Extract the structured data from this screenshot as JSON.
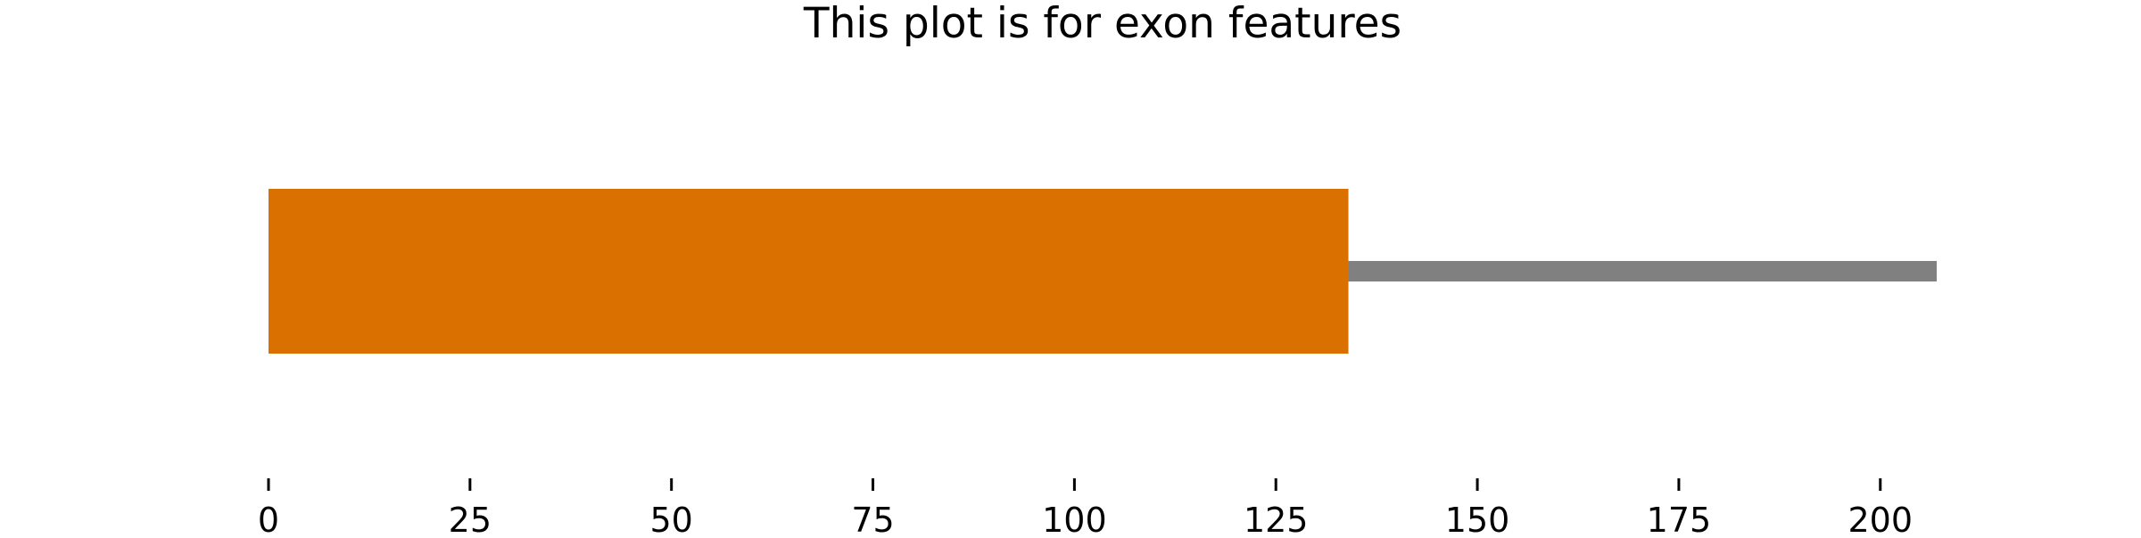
{
  "chart_data": {
    "type": "bar",
    "title": "This plot is for exon features",
    "xlabel": "",
    "ylabel": "",
    "xlim": [
      0,
      207
    ],
    "ticks": [
      0,
      25,
      50,
      75,
      100,
      125,
      150,
      175,
      200
    ],
    "tick_labels": [
      "0",
      "25",
      "50",
      "75",
      "100",
      "125",
      "150",
      "175",
      "200"
    ],
    "features": [
      {
        "start": 0,
        "end": 134,
        "color": "#d97000",
        "kind": "exon-block"
      }
    ],
    "baseline": {
      "start": 134,
      "end": 207,
      "color": "#808080"
    },
    "grid": false,
    "legend": "none"
  }
}
